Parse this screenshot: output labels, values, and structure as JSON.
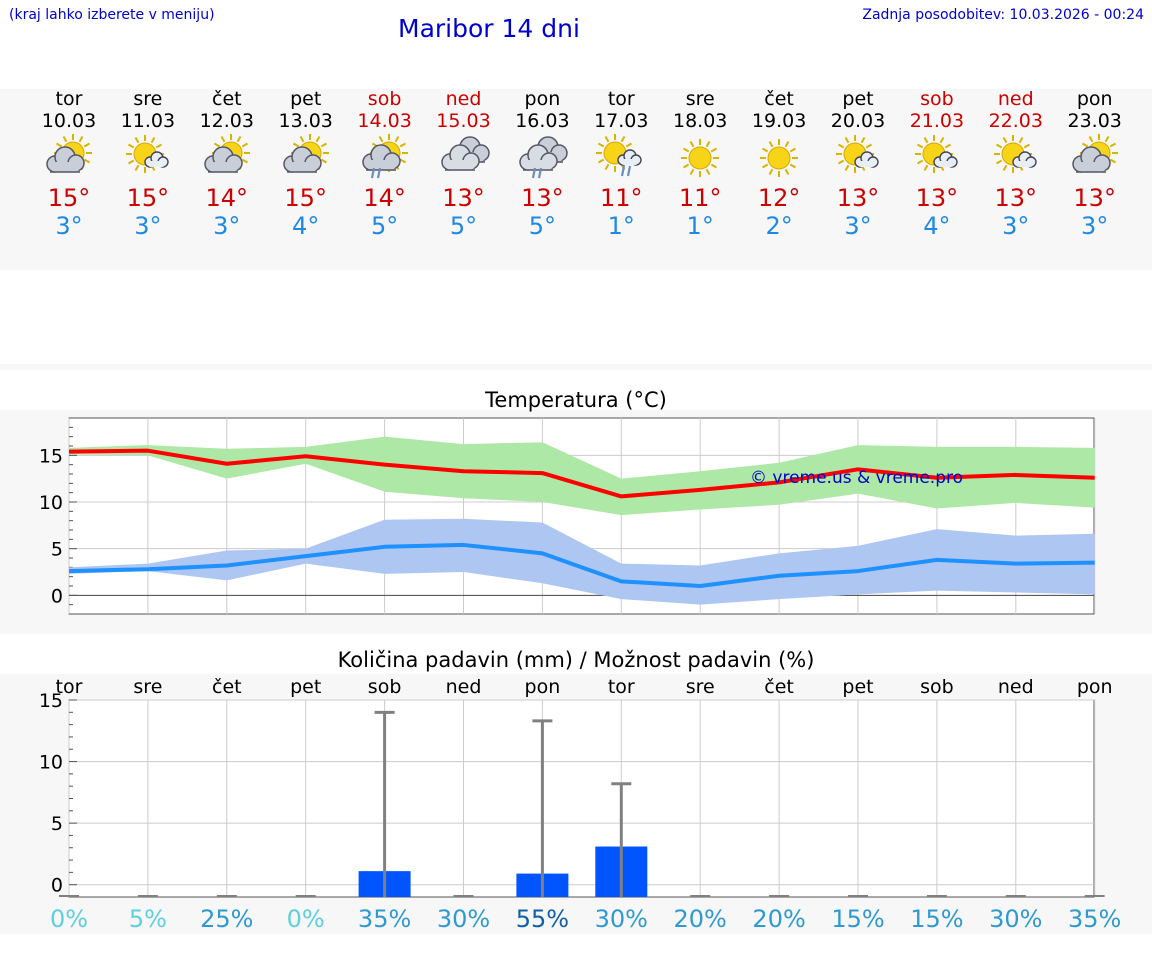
{
  "header": {
    "left_note": "(kraj lahko izberete v meniju)",
    "title": "Maribor 14 dni",
    "last_update": "Zadnja posodobitev: 10.03.2026 - 00:24"
  },
  "colors": {
    "link": "#0000cc",
    "weekend": "#cc0000",
    "max_line": "#ff0000",
    "min_line": "#1e90ff",
    "max_band": "#aee8a6",
    "min_band": "#aec6f2",
    "bar": "#0055ff"
  },
  "days": [
    {
      "name": "tor",
      "date": "10.03",
      "icon": "sun-cloud-icon",
      "tmax": "15°",
      "tmin": "3°",
      "weekend": false
    },
    {
      "name": "sre",
      "date": "11.03",
      "icon": "sun-small-cloud-icon",
      "tmax": "15°",
      "tmin": "3°",
      "weekend": false
    },
    {
      "name": "čet",
      "date": "12.03",
      "icon": "sun-cloud-icon",
      "tmax": "14°",
      "tmin": "3°",
      "weekend": false
    },
    {
      "name": "pet",
      "date": "13.03",
      "icon": "sun-cloud-icon",
      "tmax": "15°",
      "tmin": "4°",
      "weekend": false
    },
    {
      "name": "sob",
      "date": "14.03",
      "icon": "sun-cloud-rain-icon",
      "tmax": "14°",
      "tmin": "5°",
      "weekend": true
    },
    {
      "name": "ned",
      "date": "15.03",
      "icon": "cloudy-icon",
      "tmax": "13°",
      "tmin": "5°",
      "weekend": true
    },
    {
      "name": "pon",
      "date": "16.03",
      "icon": "cloud-rain-icon",
      "tmax": "13°",
      "tmin": "5°",
      "weekend": false
    },
    {
      "name": "tor",
      "date": "17.03",
      "icon": "sun-small-cloud-rain-icon",
      "tmax": "11°",
      "tmin": "1°",
      "weekend": false
    },
    {
      "name": "sre",
      "date": "18.03",
      "icon": "sun-icon",
      "tmax": "11°",
      "tmin": "1°",
      "weekend": false
    },
    {
      "name": "čet",
      "date": "19.03",
      "icon": "sun-icon",
      "tmax": "12°",
      "tmin": "2°",
      "weekend": false
    },
    {
      "name": "pet",
      "date": "20.03",
      "icon": "sun-small-cloud-icon",
      "tmax": "13°",
      "tmin": "3°",
      "weekend": false
    },
    {
      "name": "sob",
      "date": "21.03",
      "icon": "sun-small-cloud-icon",
      "tmax": "13°",
      "tmin": "4°",
      "weekend": true
    },
    {
      "name": "ned",
      "date": "22.03",
      "icon": "sun-small-cloud-icon",
      "tmax": "13°",
      "tmin": "3°",
      "weekend": true
    },
    {
      "name": "pon",
      "date": "23.03",
      "icon": "sun-cloud-icon",
      "tmax": "13°",
      "tmin": "3°",
      "weekend": false
    }
  ],
  "chart_data": [
    {
      "type": "line",
      "title": "Temperatura (°C)",
      "watermark": "© vreme.us & vreme.pro",
      "x": [
        0,
        1,
        2,
        3,
        4,
        5,
        6,
        7,
        8,
        9,
        10,
        11,
        12,
        13
      ],
      "ylim": [
        -2,
        19
      ],
      "yticks": [
        0,
        5,
        10,
        15
      ],
      "grid": true,
      "series": [
        {
          "name": "max",
          "values": [
            15.4,
            15.5,
            14.1,
            14.9,
            14.0,
            13.3,
            13.1,
            10.6,
            11.3,
            12.1,
            13.5,
            12.6,
            12.9,
            12.6
          ]
        },
        {
          "name": "max_upper",
          "values": [
            15.8,
            16.1,
            15.7,
            15.9,
            17.0,
            16.2,
            16.4,
            12.5,
            13.3,
            14.2,
            16.1,
            15.9,
            15.9,
            15.8
          ]
        },
        {
          "name": "max_lower",
          "values": [
            15.1,
            15.0,
            12.5,
            14.1,
            11.1,
            10.4,
            10.0,
            8.6,
            9.2,
            9.7,
            10.9,
            9.3,
            9.9,
            9.4
          ]
        },
        {
          "name": "min",
          "values": [
            2.6,
            2.8,
            3.2,
            4.2,
            5.2,
            5.4,
            4.5,
            1.5,
            1.0,
            2.1,
            2.6,
            3.8,
            3.4,
            3.5
          ]
        },
        {
          "name": "min_upper",
          "values": [
            3.0,
            3.4,
            4.8,
            5.0,
            8.1,
            8.2,
            7.8,
            3.4,
            3.2,
            4.5,
            5.3,
            7.1,
            6.4,
            6.6
          ]
        },
        {
          "name": "min_lower",
          "values": [
            2.3,
            2.6,
            1.6,
            3.4,
            2.3,
            2.5,
            1.3,
            -0.4,
            -1.0,
            -0.4,
            0.1,
            0.5,
            0.3,
            0.1
          ]
        }
      ]
    },
    {
      "type": "bar",
      "title": "Količina padavin (mm) / Možnost padavin (%)",
      "categories": [
        "tor",
        "sre",
        "čet",
        "pet",
        "sob",
        "ned",
        "pon",
        "tor",
        "sre",
        "čet",
        "pet",
        "sob",
        "ned",
        "pon"
      ],
      "ylim": [
        -1,
        15
      ],
      "yticks": [
        0,
        5,
        10,
        15
      ],
      "grid": true,
      "amounts_mm": [
        0,
        0,
        0,
        0,
        1.1,
        0,
        0.9,
        3.1,
        0,
        0,
        0,
        0,
        0,
        0
      ],
      "amount_max_mm": [
        0,
        0,
        0,
        0,
        14.0,
        0,
        13.3,
        8.2,
        0,
        0,
        0,
        0,
        0,
        0
      ],
      "probabilities": [
        "0%",
        "5%",
        "25%",
        "0%",
        "35%",
        "30%",
        "55%",
        "30%",
        "20%",
        "20%",
        "15%",
        "15%",
        "30%",
        "35%"
      ],
      "probability_colors": [
        "#5ecfdf",
        "#5ecfdf",
        "#2e9ad1",
        "#5ecfdf",
        "#2e9ad1",
        "#2e9ad1",
        "#1060a8",
        "#2e9ad1",
        "#2e9ad1",
        "#2e9ad1",
        "#2e9ad1",
        "#2e9ad1",
        "#2e9ad1",
        "#2e9ad1"
      ]
    }
  ]
}
